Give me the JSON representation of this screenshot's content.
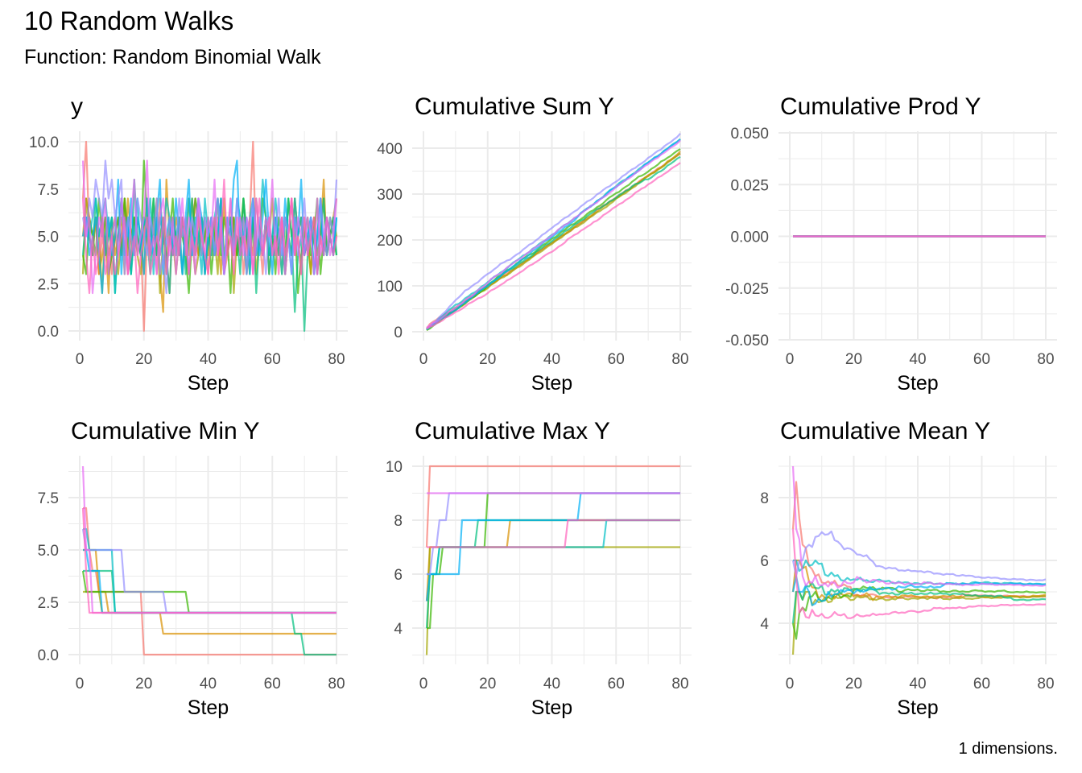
{
  "title": "10 Random Walks",
  "subtitle": "Function: Random Binomial Walk",
  "caption": "1 dimensions.",
  "colors": [
    "#F8766D",
    "#D89000",
    "#A3A500",
    "#39B600",
    "#00BF7D",
    "#00BFC4",
    "#00B0F6",
    "#9590FF",
    "#E76BF3",
    "#FF62BC"
  ],
  "chart_data": {
    "type": "line",
    "x": "step 1..80",
    "y_series": [
      [
        7,
        10,
        5,
        4,
        6,
        3,
        5,
        4,
        6,
        3,
        5,
        6,
        4,
        7,
        3,
        5,
        6,
        4,
        5,
        0,
        5,
        4,
        6,
        3,
        7,
        5,
        4,
        2,
        6,
        5,
        4,
        6,
        5,
        3,
        5,
        7,
        4,
        5,
        6,
        3,
        5,
        4,
        6,
        5,
        3,
        4,
        7,
        5,
        4,
        6,
        3,
        5,
        6,
        10,
        4,
        5,
        3,
        6,
        4,
        5,
        5,
        4,
        6,
        3,
        5,
        4,
        7,
        5,
        3,
        6,
        4,
        5,
        6,
        3,
        5,
        4,
        6,
        5,
        4,
        5
      ],
      [
        5,
        7,
        6,
        5,
        6,
        3,
        4,
        5,
        2,
        6,
        4,
        5,
        6,
        3,
        7,
        5,
        4,
        6,
        5,
        3,
        6,
        4,
        5,
        7,
        3,
        1,
        8,
        5,
        4,
        6,
        5,
        3,
        6,
        4,
        7,
        5,
        4,
        6,
        3,
        5,
        4,
        6,
        5,
        3,
        7,
        4,
        5,
        6,
        4,
        5,
        6,
        3,
        5,
        4,
        7,
        5,
        4,
        6,
        3,
        5,
        4,
        5,
        6,
        3,
        5,
        7,
        4,
        5,
        6,
        4,
        5,
        3,
        6,
        4,
        5,
        8,
        4,
        5,
        6,
        7
      ],
      [
        3,
        7,
        5,
        4,
        6,
        5,
        2,
        6,
        4,
        5,
        6,
        3,
        5,
        7,
        4,
        5,
        6,
        4,
        3,
        5,
        7,
        4,
        5,
        6,
        2,
        5,
        4,
        6,
        5,
        3,
        5,
        6,
        4,
        7,
        5,
        3,
        4,
        6,
        5,
        4,
        6,
        5,
        3,
        7,
        4,
        5,
        6,
        2,
        5,
        4,
        7,
        5,
        4,
        6,
        3,
        5,
        4,
        6,
        5,
        7,
        4,
        5,
        3,
        6,
        5,
        4,
        7,
        5,
        6,
        4,
        5,
        3,
        6,
        4,
        5,
        7,
        4,
        5,
        6,
        5
      ],
      [
        4,
        3,
        6,
        5,
        4,
        7,
        5,
        6,
        3,
        4,
        5,
        6,
        4,
        7,
        5,
        3,
        6,
        5,
        4,
        9,
        6,
        5,
        7,
        4,
        5,
        6,
        3,
        5,
        7,
        4,
        6,
        5,
        4,
        2,
        5,
        7,
        6,
        4,
        5,
        6,
        3,
        5,
        7,
        4,
        6,
        5,
        2,
        6,
        4,
        5,
        7,
        5,
        3,
        6,
        4,
        5,
        7,
        6,
        4,
        5,
        3,
        6,
        5,
        4,
        7,
        5,
        6,
        2,
        4,
        5,
        6,
        4,
        5,
        7,
        3,
        5,
        4,
        6,
        5,
        4
      ],
      [
        4,
        6,
        5,
        4,
        7,
        5,
        6,
        4,
        5,
        6,
        2,
        5,
        7,
        4,
        6,
        3,
        8,
        5,
        4,
        6,
        5,
        3,
        7,
        4,
        6,
        5,
        4,
        2,
        6,
        5,
        4,
        6,
        3,
        5,
        7,
        4,
        5,
        6,
        3,
        5,
        6,
        4,
        5,
        7,
        3,
        5,
        6,
        4,
        5,
        3,
        7,
        5,
        4,
        6,
        2,
        5,
        4,
        6,
        3,
        5,
        6,
        4,
        5,
        3,
        7,
        5,
        1,
        4,
        5,
        0,
        4,
        6,
        5,
        3,
        5,
        7,
        4,
        5,
        6,
        4
      ],
      [
        6,
        6,
        5,
        6,
        7,
        5,
        6,
        7,
        5,
        6,
        2,
        5,
        7,
        4,
        6,
        3,
        5,
        7,
        4,
        6,
        5,
        7,
        3,
        6,
        4,
        5,
        7,
        6,
        4,
        5,
        6,
        3,
        5,
        7,
        4,
        6,
        5,
        3,
        7,
        5,
        4,
        6,
        7,
        5,
        3,
        6,
        5,
        4,
        7,
        6,
        5,
        3,
        6,
        7,
        4,
        5,
        8,
        6,
        4,
        5,
        7,
        5,
        3,
        6,
        5,
        4,
        7,
        5,
        6,
        4,
        5,
        6,
        3,
        5,
        7,
        4,
        6,
        5,
        4,
        6
      ],
      [
        5,
        6,
        4,
        5,
        6,
        4,
        2,
        5,
        6,
        4,
        5,
        8,
        3,
        6,
        5,
        7,
        4,
        6,
        5,
        3,
        7,
        5,
        4,
        6,
        8,
        3,
        5,
        6,
        4,
        7,
        5,
        3,
        6,
        8,
        4,
        5,
        7,
        6,
        3,
        5,
        6,
        4,
        5,
        7,
        3,
        6,
        5,
        8,
        9,
        4,
        5,
        6,
        3,
        7,
        5,
        4,
        6,
        8,
        5,
        3,
        6,
        5,
        4,
        7,
        5,
        3,
        6,
        5,
        8,
        4,
        5,
        6,
        3,
        5,
        7,
        4,
        6,
        5,
        4,
        6
      ],
      [
        6,
        5,
        7,
        6,
        8,
        7,
        6,
        9,
        7,
        8,
        6,
        7,
        8,
        3,
        6,
        5,
        4,
        7,
        6,
        5,
        4,
        6,
        5,
        7,
        3,
        4,
        2,
        6,
        5,
        4,
        7,
        5,
        6,
        3,
        6,
        5,
        7,
        4,
        6,
        5,
        6,
        4,
        7,
        5,
        3,
        6,
        5,
        4,
        7,
        5,
        6,
        3,
        5,
        7,
        4,
        6,
        5,
        3,
        6,
        4,
        5,
        7,
        4,
        6,
        5,
        3,
        6,
        4,
        5,
        7,
        4,
        6,
        5,
        3,
        7,
        5,
        4,
        6,
        5,
        8
      ],
      [
        9,
        5,
        6,
        2,
        4,
        6,
        5,
        7,
        3,
        5,
        6,
        4,
        7,
        5,
        3,
        6,
        8,
        4,
        5,
        6,
        9,
        4,
        5,
        3,
        6,
        7,
        5,
        4,
        6,
        3,
        5,
        7,
        4,
        6,
        5,
        3,
        7,
        5,
        4,
        6,
        5,
        8,
        4,
        6,
        3,
        5,
        7,
        4,
        5,
        6,
        4,
        6,
        5,
        3,
        7,
        5,
        4,
        6,
        5,
        8,
        4,
        5,
        6,
        3,
        5,
        7,
        4,
        6,
        5,
        4,
        6,
        5,
        3,
        7,
        4,
        5,
        6,
        4,
        5,
        7
      ],
      [
        7,
        4,
        2,
        5,
        3,
        4,
        6,
        3,
        4,
        5,
        3,
        4,
        5,
        6,
        3,
        4,
        5,
        2,
        4,
        5,
        6,
        3,
        4,
        5,
        4,
        6,
        3,
        5,
        4,
        5,
        4,
        6,
        5,
        3,
        5,
        4,
        6,
        5,
        4,
        3,
        5,
        6,
        4,
        5,
        8,
        4,
        5,
        3,
        6,
        4,
        5,
        4,
        6,
        3,
        5,
        7,
        4,
        5,
        6,
        4,
        5,
        3,
        6,
        4,
        5,
        7,
        4,
        5,
        3,
        6,
        4,
        5,
        6,
        3,
        5,
        4,
        6,
        5,
        4,
        5
      ]
    ],
    "panels": [
      {
        "title": "y",
        "transform": "identity",
        "xlabel": "",
        "xlim": [
          0,
          80
        ],
        "ylim": [
          0,
          10
        ],
        "xticks": [
          "0",
          "20",
          "40",
          "60",
          "80"
        ],
        "yticks": [
          "0.0",
          "2.5",
          "5.0",
          "7.5",
          "10.0"
        ],
        "ytick_values": [
          0,
          2.5,
          5,
          7.5,
          10
        ]
      },
      {
        "title": "Cumulative Sum Y",
        "transform": "cumsum",
        "xlabel": "Step",
        "xlim": [
          0,
          80
        ],
        "ylim": [
          0,
          400
        ],
        "xticks": [
          "0",
          "20",
          "40",
          "60",
          "80"
        ],
        "yticks": [
          "0",
          "100",
          "200",
          "300",
          "400"
        ],
        "ytick_values": [
          0,
          100,
          200,
          300,
          400
        ]
      },
      {
        "title": "Cumulative Prod Y",
        "transform": "cumprod",
        "constant_value": 0,
        "xlabel": "Step",
        "xlim": [
          0,
          80
        ],
        "ylim": [
          -0.05,
          0.05
        ],
        "xticks": [
          "0",
          "20",
          "40",
          "60",
          "80"
        ],
        "yticks": [
          "-0.050",
          "-0.025",
          "0.000",
          "0.025",
          "0.050"
        ],
        "ytick_values": [
          -0.05,
          -0.025,
          0,
          0.025,
          0.05
        ]
      },
      {
        "title": "Cumulative Min Y",
        "transform": "cummin",
        "xlabel": "Step",
        "xlim": [
          0,
          80
        ],
        "ylim": [
          0,
          7.5
        ],
        "xticks": [
          "0",
          "20",
          "40",
          "60",
          "80"
        ],
        "yticks": [
          "0.0",
          "2.5",
          "5.0",
          "7.5"
        ],
        "ytick_values": [
          0,
          2.5,
          5,
          7.5
        ]
      },
      {
        "title": "Cumulative Max Y",
        "transform": "cummax",
        "xlabel": "Step",
        "xlim": [
          0,
          80
        ],
        "ylim": [
          4,
          10
        ],
        "xticks": [
          "0",
          "20",
          "40",
          "60",
          "80"
        ],
        "yticks": [
          "4",
          "6",
          "8",
          "10"
        ],
        "ytick_values": [
          4,
          6,
          8,
          10
        ]
      },
      {
        "title": "Cumulative Mean Y",
        "transform": "cummean",
        "xlabel": "Step",
        "xlim": [
          0,
          80
        ],
        "ylim": [
          4,
          8
        ],
        "xticks": [
          "0",
          "20",
          "40",
          "60",
          "80"
        ],
        "yticks": [
          "4",
          "6",
          "8"
        ],
        "ytick_values": [
          4,
          6,
          8
        ]
      }
    ],
    "grid": true,
    "legend": "none"
  }
}
